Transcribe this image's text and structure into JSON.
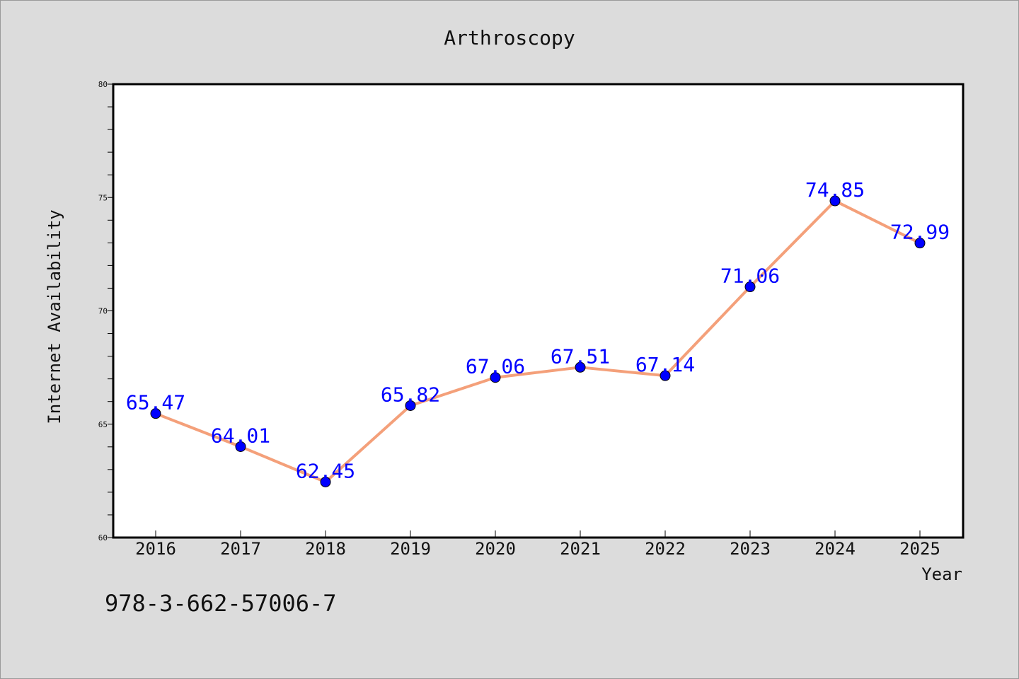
{
  "chart_data": {
    "type": "line",
    "title": "Arthroscopy",
    "xlabel": "Year",
    "ylabel": "Internet Availability",
    "categories": [
      "2016",
      "2017",
      "2018",
      "2019",
      "2020",
      "2021",
      "2022",
      "2023",
      "2024",
      "2025"
    ],
    "series": [
      {
        "values": [
          65.47,
          64.01,
          62.45,
          65.82,
          67.06,
          67.51,
          67.14,
          71.06,
          74.85,
          72.99
        ],
        "labels": [
          "65.47",
          "64.01",
          "62.45",
          "65.82",
          "67.06",
          "67.51",
          "67.14",
          "71.06",
          "74.85",
          "72.99"
        ],
        "line_color": "#f4a07a",
        "marker_color": "#0000ff"
      }
    ],
    "ylim": [
      60,
      80
    ],
    "yticks": [
      "60",
      "65",
      "70",
      "75",
      "80"
    ],
    "grid": false,
    "legend": "none",
    "background_color": "#dcdcdc",
    "plot_background": "#ffffff"
  },
  "footer_text": "978-3-662-57006-7"
}
